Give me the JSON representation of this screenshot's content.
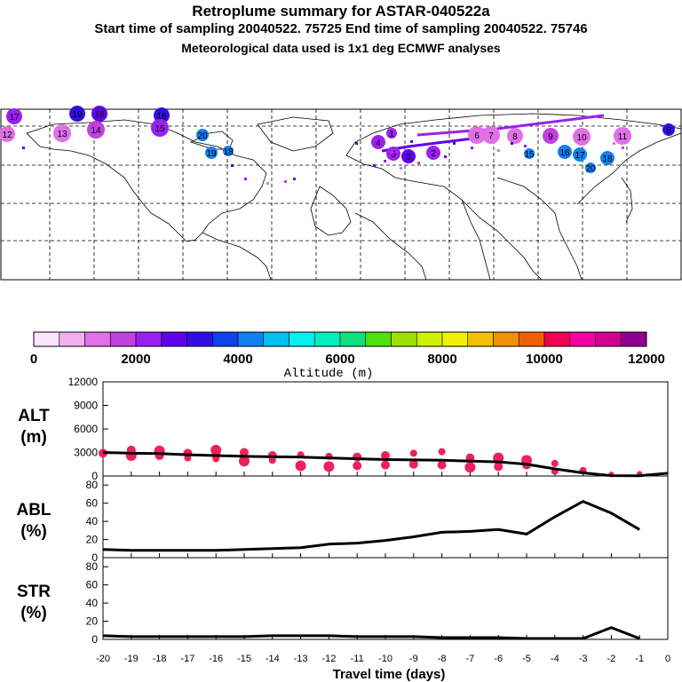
{
  "header": {
    "title": "Retroplume summary for ASTAR-040522a",
    "line2": "Start time of sampling 20040522. 75725     End time of sampling 20040522. 75746",
    "line3": "Meteorological data used is 1x1 deg ECMWF analyses"
  },
  "colorbar": {
    "colors": [
      "#ffe4ff",
      "#f0b0f0",
      "#e070e8",
      "#c040e0",
      "#9a20f0",
      "#6000e8",
      "#3010e0",
      "#1040e8",
      "#1080f0",
      "#00c0f0",
      "#00f0f0",
      "#00f0c0",
      "#10e080",
      "#50e010",
      "#a0e000",
      "#d0f000",
      "#f0f000",
      "#f0c000",
      "#f09000",
      "#f06000",
      "#f00050",
      "#f000a0",
      "#d00090",
      "#900090"
    ],
    "tick_labels": [
      "0",
      "2000",
      "4000",
      "6000",
      "8000",
      "10000",
      "12000"
    ],
    "label": "Altitude (m)"
  },
  "map": {
    "labels": [
      {
        "t": "17",
        "c": "#9a20f0"
      },
      {
        "t": "12",
        "c": "#e070e8"
      },
      {
        "t": "13",
        "c": "#e070e8"
      },
      {
        "t": "19",
        "c": "#3010e0"
      },
      {
        "t": "18",
        "c": "#6000e8"
      },
      {
        "t": "14",
        "c": "#c040e0"
      },
      {
        "t": "16",
        "c": "#3010e0"
      },
      {
        "t": "15",
        "c": "#9a20f0"
      },
      {
        "t": "20",
        "c": "#1080f0"
      },
      {
        "t": "19",
        "c": "#1080f0"
      },
      {
        "t": "18",
        "c": "#1080f0"
      },
      {
        "t": "6",
        "c": "#e070e8"
      },
      {
        "t": "7",
        "c": "#e070e8"
      },
      {
        "t": "8",
        "c": "#e070e8"
      },
      {
        "t": "9",
        "c": "#c040e0"
      },
      {
        "t": "10",
        "c": "#e070e8"
      },
      {
        "t": "11",
        "c": "#e070e8"
      },
      {
        "t": "15",
        "c": "#1080f0"
      },
      {
        "t": "16",
        "c": "#1080f0"
      },
      {
        "t": "17",
        "c": "#1080f0"
      },
      {
        "t": "18",
        "c": "#1080f0"
      },
      {
        "t": "20",
        "c": "#1080f0"
      },
      {
        "t": "8",
        "c": "#3010e0"
      },
      {
        "t": "4",
        "c": "#9a20f0"
      },
      {
        "t": "5",
        "c": "#9a20f0"
      },
      {
        "t": "3",
        "c": "#6000e8"
      },
      {
        "t": "2",
        "c": "#9a20f0"
      },
      {
        "t": "1",
        "c": "#9a20f0"
      }
    ]
  },
  "chart_data": [
    {
      "type": "scatter",
      "name": "ALT",
      "ylabel_lines": [
        "ALT",
        "(m)"
      ],
      "ylim": [
        0,
        12000
      ],
      "yticks": [
        0,
        3000,
        6000,
        9000,
        12000
      ],
      "xlim": [
        -20,
        0
      ],
      "line": {
        "x": [
          -20,
          -19,
          -18,
          -17,
          -16,
          -15,
          -14,
          -13,
          -12,
          -11,
          -10,
          -9,
          -8,
          -7,
          -6,
          -5,
          -4,
          -3,
          -2,
          -1,
          0
        ],
        "y": [
          3000,
          2900,
          2850,
          2700,
          2600,
          2500,
          2450,
          2400,
          2300,
          2200,
          2100,
          2050,
          2000,
          1900,
          1800,
          1500,
          900,
          400,
          50,
          30,
          350
        ]
      },
      "points": [
        {
          "x": -20,
          "y": 2900,
          "s": 5
        },
        {
          "x": -19,
          "y": 3300,
          "s": 5
        },
        {
          "x": -19,
          "y": 2600,
          "s": 6
        },
        {
          "x": -18,
          "y": 3200,
          "s": 6
        },
        {
          "x": -18,
          "y": 2600,
          "s": 5
        },
        {
          "x": -17,
          "y": 2900,
          "s": 5
        },
        {
          "x": -17,
          "y": 2300,
          "s": 4
        },
        {
          "x": -16,
          "y": 3300,
          "s": 6
        },
        {
          "x": -16,
          "y": 2700,
          "s": 5
        },
        {
          "x": -16,
          "y": 2200,
          "s": 4
        },
        {
          "x": -15,
          "y": 3000,
          "s": 5
        },
        {
          "x": -15,
          "y": 1900,
          "s": 6
        },
        {
          "x": -14,
          "y": 2600,
          "s": 5
        },
        {
          "x": -14,
          "y": 2000,
          "s": 4
        },
        {
          "x": -13,
          "y": 2700,
          "s": 4
        },
        {
          "x": -13,
          "y": 1300,
          "s": 6
        },
        {
          "x": -12,
          "y": 2500,
          "s": 4
        },
        {
          "x": -12,
          "y": 1200,
          "s": 6
        },
        {
          "x": -11,
          "y": 2400,
          "s": 5
        },
        {
          "x": -11,
          "y": 1300,
          "s": 5
        },
        {
          "x": -10,
          "y": 2600,
          "s": 5
        },
        {
          "x": -10,
          "y": 1400,
          "s": 5
        },
        {
          "x": -9,
          "y": 2900,
          "s": 4
        },
        {
          "x": -9,
          "y": 1500,
          "s": 5
        },
        {
          "x": -8,
          "y": 3100,
          "s": 4
        },
        {
          "x": -8,
          "y": 1400,
          "s": 5
        },
        {
          "x": -7,
          "y": 2300,
          "s": 5
        },
        {
          "x": -7,
          "y": 1100,
          "s": 6
        },
        {
          "x": -6,
          "y": 2300,
          "s": 6
        },
        {
          "x": -6,
          "y": 1200,
          "s": 5
        },
        {
          "x": -5,
          "y": 2000,
          "s": 6
        },
        {
          "x": -5,
          "y": 1400,
          "s": 5
        },
        {
          "x": -4,
          "y": 1600,
          "s": 4
        },
        {
          "x": -4,
          "y": 600,
          "s": 4
        },
        {
          "x": -3,
          "y": 700,
          "s": 4
        },
        {
          "x": -2,
          "y": 200,
          "s": 3
        },
        {
          "x": -1,
          "y": 300,
          "s": 3
        }
      ]
    },
    {
      "type": "line",
      "name": "ABL",
      "ylabel_lines": [
        "ABL",
        "(%)"
      ],
      "ylim": [
        0,
        90
      ],
      "yticks": [
        0,
        20,
        40,
        60,
        80
      ],
      "xlim": [
        -20,
        0
      ],
      "x": [
        -20,
        -19,
        -18,
        -17,
        -16,
        -15,
        -14,
        -13,
        -12,
        -11,
        -10,
        -9,
        -8,
        -7,
        -6,
        -5,
        -4,
        -3,
        -2,
        -1
      ],
      "y": [
        9,
        8,
        8,
        8,
        8,
        9,
        10,
        11,
        15,
        16,
        19,
        23,
        28,
        29,
        31,
        26,
        45,
        62,
        49,
        31
      ]
    },
    {
      "type": "line",
      "name": "STR",
      "ylabel_lines": [
        "STR",
        "(%)"
      ],
      "ylim": [
        0,
        90
      ],
      "yticks": [
        0,
        20,
        40,
        60,
        80
      ],
      "xlim": [
        -20,
        0
      ],
      "x": [
        -20,
        -19,
        -18,
        -17,
        -16,
        -15,
        -14,
        -13,
        -12,
        -11,
        -10,
        -9,
        -8,
        -7,
        -6,
        -5,
        -4,
        -3,
        -2,
        -1
      ],
      "y": [
        4,
        3,
        3,
        3,
        3,
        3,
        4,
        4,
        4,
        3,
        3,
        3,
        2,
        2,
        2,
        1,
        1,
        1,
        13,
        1
      ]
    }
  ],
  "x_axis": {
    "tick_labels": [
      "-20",
      "-19",
      "-18",
      "-17",
      "-16",
      "-15",
      "-14",
      "-13",
      "-12",
      "-11",
      "-10",
      "-9",
      "-8",
      "-7",
      "-6",
      "-5",
      "-4",
      "-3",
      "-2",
      "-1",
      "0"
    ],
    "label": "Travel time (days)"
  }
}
